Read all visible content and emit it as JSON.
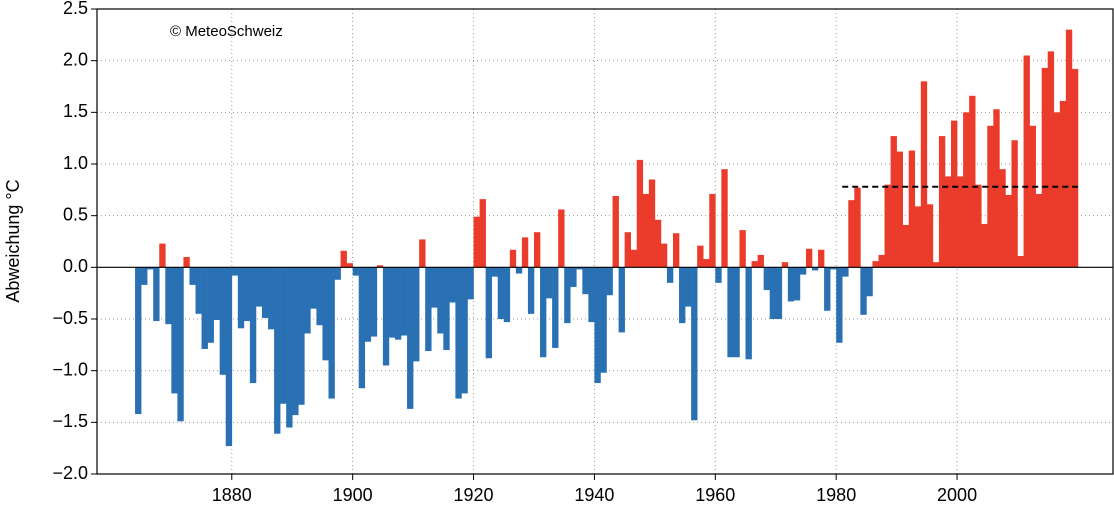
{
  "chart_data": {
    "type": "bar",
    "y_label": "Abweichung °C",
    "annotation": "© MeteoSchweiz",
    "x": [
      1864,
      1865,
      1866,
      1867,
      1868,
      1869,
      1870,
      1871,
      1872,
      1873,
      1874,
      1875,
      1876,
      1877,
      1878,
      1879,
      1880,
      1881,
      1882,
      1883,
      1884,
      1885,
      1886,
      1887,
      1888,
      1889,
      1890,
      1891,
      1892,
      1893,
      1894,
      1895,
      1896,
      1897,
      1898,
      1899,
      1900,
      1901,
      1902,
      1903,
      1904,
      1905,
      1906,
      1907,
      1908,
      1909,
      1910,
      1911,
      1912,
      1913,
      1914,
      1915,
      1916,
      1917,
      1918,
      1919,
      1920,
      1921,
      1922,
      1923,
      1924,
      1925,
      1926,
      1927,
      1928,
      1929,
      1930,
      1931,
      1932,
      1933,
      1934,
      1935,
      1936,
      1937,
      1938,
      1939,
      1940,
      1941,
      1942,
      1943,
      1944,
      1945,
      1946,
      1947,
      1948,
      1949,
      1950,
      1951,
      1952,
      1953,
      1954,
      1955,
      1956,
      1957,
      1958,
      1959,
      1960,
      1961,
      1962,
      1963,
      1964,
      1965,
      1966,
      1967,
      1968,
      1969,
      1970,
      1971,
      1972,
      1973,
      1974,
      1975,
      1976,
      1977,
      1978,
      1979,
      1980,
      1981,
      1982,
      1983,
      1984,
      1985,
      1986,
      1987,
      1988,
      1989,
      1990,
      1991,
      1992,
      1993,
      1994,
      1995,
      1996,
      1997,
      1998,
      1999,
      2000,
      2001,
      2002,
      2003,
      2004,
      2005,
      2006,
      2007,
      2008,
      2009,
      2010,
      2011,
      2012,
      2013,
      2014,
      2015,
      2016,
      2017,
      2018,
      2019
    ],
    "values": [
      -1.42,
      -0.17,
      -0.02,
      -0.52,
      0.23,
      -0.55,
      -1.22,
      -1.49,
      0.1,
      -0.17,
      -0.45,
      -0.79,
      -0.73,
      -0.51,
      -1.04,
      -1.73,
      -0.08,
      -0.59,
      -0.52,
      -1.12,
      -0.38,
      -0.49,
      -0.6,
      -1.61,
      -1.32,
      -1.55,
      -1.43,
      -1.33,
      -0.64,
      -0.4,
      -0.56,
      -0.9,
      -1.27,
      -0.12,
      0.16,
      0.04,
      -0.08,
      -1.17,
      -0.72,
      -0.67,
      0.02,
      -0.95,
      -0.68,
      -0.7,
      -0.66,
      -1.37,
      -0.91,
      0.27,
      -0.81,
      -0.39,
      -0.64,
      -0.8,
      -0.34,
      -1.27,
      -1.22,
      -0.31,
      0.49,
      0.66,
      -0.88,
      -0.09,
      -0.5,
      -0.53,
      0.17,
      -0.06,
      0.29,
      -0.45,
      0.34,
      -0.87,
      -0.3,
      -0.78,
      0.56,
      -0.54,
      -0.19,
      -0.02,
      -0.26,
      -0.53,
      -1.12,
      -1.02,
      -0.27,
      0.69,
      -0.63,
      0.34,
      0.17,
      1.04,
      0.71,
      0.85,
      0.46,
      0.23,
      -0.15,
      0.33,
      -0.54,
      -0.38,
      -1.48,
      0.21,
      0.08,
      0.71,
      -0.15,
      0.95,
      -0.87,
      -0.87,
      0.36,
      -0.89,
      0.06,
      0.12,
      -0.22,
      -0.5,
      -0.5,
      0.05,
      -0.33,
      -0.32,
      -0.07,
      0.18,
      -0.03,
      0.17,
      -0.42,
      -0.02,
      -0.73,
      -0.09,
      0.65,
      0.77,
      -0.46,
      -0.28,
      0.06,
      0.12,
      0.8,
      1.27,
      1.12,
      0.41,
      1.13,
      0.59,
      1.8,
      0.61,
      0.05,
      1.27,
      0.88,
      1.42,
      0.88,
      1.5,
      1.66,
      0.8,
      0.42,
      1.37,
      1.53,
      0.95,
      0.7,
      1.23,
      0.11,
      2.05,
      1.37,
      0.71,
      1.93,
      2.09,
      1.5,
      1.61,
      2.3,
      1.92
    ],
    "positive_color": "#ea3b2b",
    "negative_color": "#2a71b4",
    "reference_line": {
      "x": [
        1981,
        2020
      ],
      "value": 0.78
    },
    "xlim": [
      1857.7,
      2025.8
    ],
    "xticks": [
      1880,
      1900,
      1920,
      1940,
      1960,
      1980,
      2000
    ],
    "ylim": [
      -2.0,
      2.5
    ],
    "yticks": [
      {
        "value": -2.0,
        "label": "−2.0"
      },
      {
        "value": -1.5,
        "label": "−1.5"
      },
      {
        "value": -1.0,
        "label": "−1.0"
      },
      {
        "value": -0.5,
        "label": "−0.5"
      },
      {
        "value": 0,
        "label": "0.0"
      },
      {
        "value": 0.5,
        "label": "0.5"
      },
      {
        "value": 1.0,
        "label": "1.0"
      },
      {
        "value": 1.5,
        "label": "1.5"
      },
      {
        "value": 2.0,
        "label": "2.0"
      },
      {
        "value": 2.5,
        "label": "2.5"
      }
    ],
    "grid": true
  }
}
